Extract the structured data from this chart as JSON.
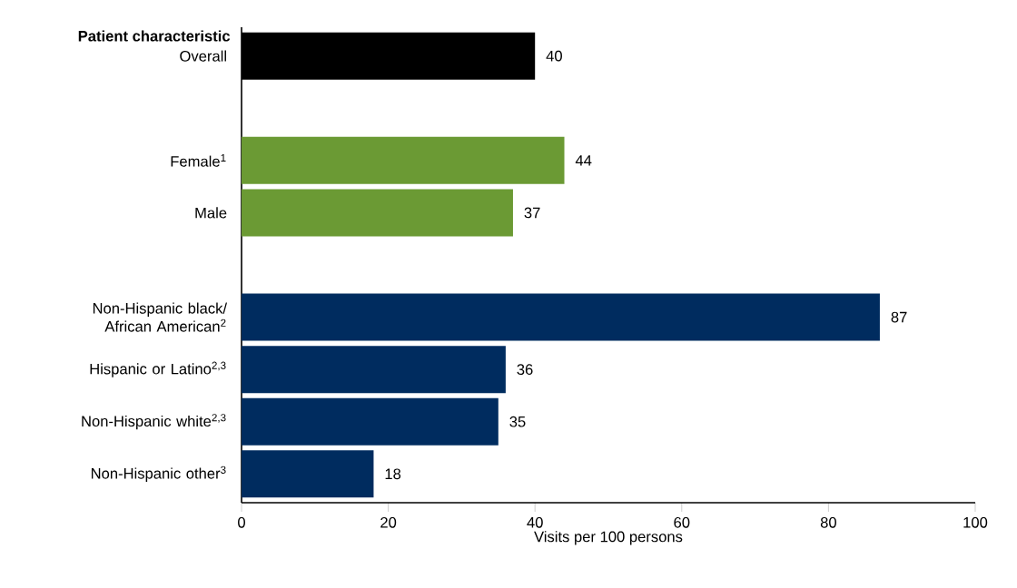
{
  "chart_data": {
    "type": "bar",
    "orientation": "horizontal",
    "ylabel": "Patient characteristic",
    "xlabel": "Visits per 100 persons",
    "categories": [
      "Overall",
      null,
      "Female$^{1}$",
      "Male",
      null,
      "Non-Hispanic black/ African American$^{2}$",
      "Hispanic or Latino$^{2,3}$",
      "Non-Hispanic white$^{2,3}$",
      "Non-Hispanic other$^{3}$"
    ],
    "values": [
      40,
      null,
      44,
      37,
      null,
      87,
      36,
      35,
      18
    ],
    "colors": [
      "#000000",
      null,
      "#6b9a34",
      "#6b9a34",
      null,
      "#002c5f",
      "#002c5f",
      "#002c5f",
      "#002c5f"
    ],
    "xlim": [
      0,
      100
    ],
    "xticks": [
      0,
      20,
      40,
      60,
      80,
      100
    ],
    "data_labels": true,
    "grid": false
  }
}
